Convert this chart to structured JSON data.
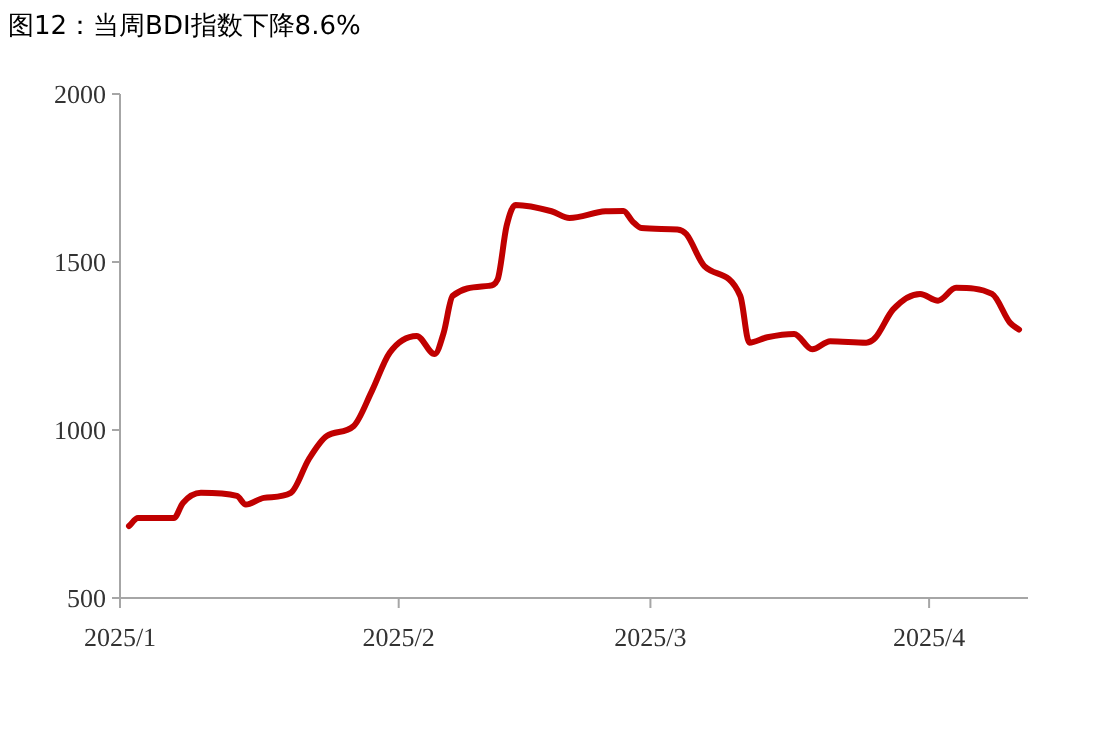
{
  "chart_data": {
    "type": "line",
    "title": "图12：当周BDI指数下降8.6%",
    "x": [
      "2025-01-02",
      "2025-01-03",
      "2025-01-07",
      "2025-01-08",
      "2025-01-10",
      "2025-01-14",
      "2025-01-15",
      "2025-01-17",
      "2025-01-20",
      "2025-01-22",
      "2025-01-24",
      "2025-01-27",
      "2025-01-29",
      "2025-01-31",
      "2025-02-03",
      "2025-02-05",
      "2025-02-06",
      "2025-02-07",
      "2025-02-11",
      "2025-02-12",
      "2025-02-13",
      "2025-02-14",
      "2025-02-18",
      "2025-02-20",
      "2025-02-24",
      "2025-02-26",
      "2025-02-27",
      "2025-02-28",
      "2025-03-04",
      "2025-03-05",
      "2025-03-07",
      "2025-03-11",
      "2025-03-12",
      "2025-03-14",
      "2025-03-17",
      "2025-03-19",
      "2025-03-21",
      "2025-03-25",
      "2025-03-26",
      "2025-03-28",
      "2025-03-31",
      "2025-04-02",
      "2025-04-04",
      "2025-04-08",
      "2025-04-10",
      "2025-04-11"
    ],
    "series": [
      {
        "color": "#c00000",
        "values": [
          714,
          738,
          738,
          783,
          813,
          804,
          778,
          798,
          813,
          913,
          982,
          1012,
          1115,
          1230,
          1280,
          1226,
          1289,
          1399,
          1429,
          1448,
          1607,
          1670,
          1651,
          1631,
          1651,
          1652,
          1621,
          1601,
          1597,
          1583,
          1488,
          1399,
          1260,
          1276,
          1286,
          1240,
          1264,
          1260,
          1274,
          1359,
          1405,
          1385,
          1423,
          1405,
          1319,
          1299
        ]
      }
    ],
    "xlim": [
      "2025-01-01",
      "2025-04-12"
    ],
    "xticks": [
      {
        "value": "2025-01-01",
        "label": "2025/1"
      },
      {
        "value": "2025-02-01",
        "label": "2025/2"
      },
      {
        "value": "2025-03-01",
        "label": "2025/3"
      },
      {
        "value": "2025-04-01",
        "label": "2025/4"
      }
    ],
    "ylim": [
      500,
      2000
    ],
    "yticks": [
      500,
      1000,
      1500,
      2000
    ]
  }
}
